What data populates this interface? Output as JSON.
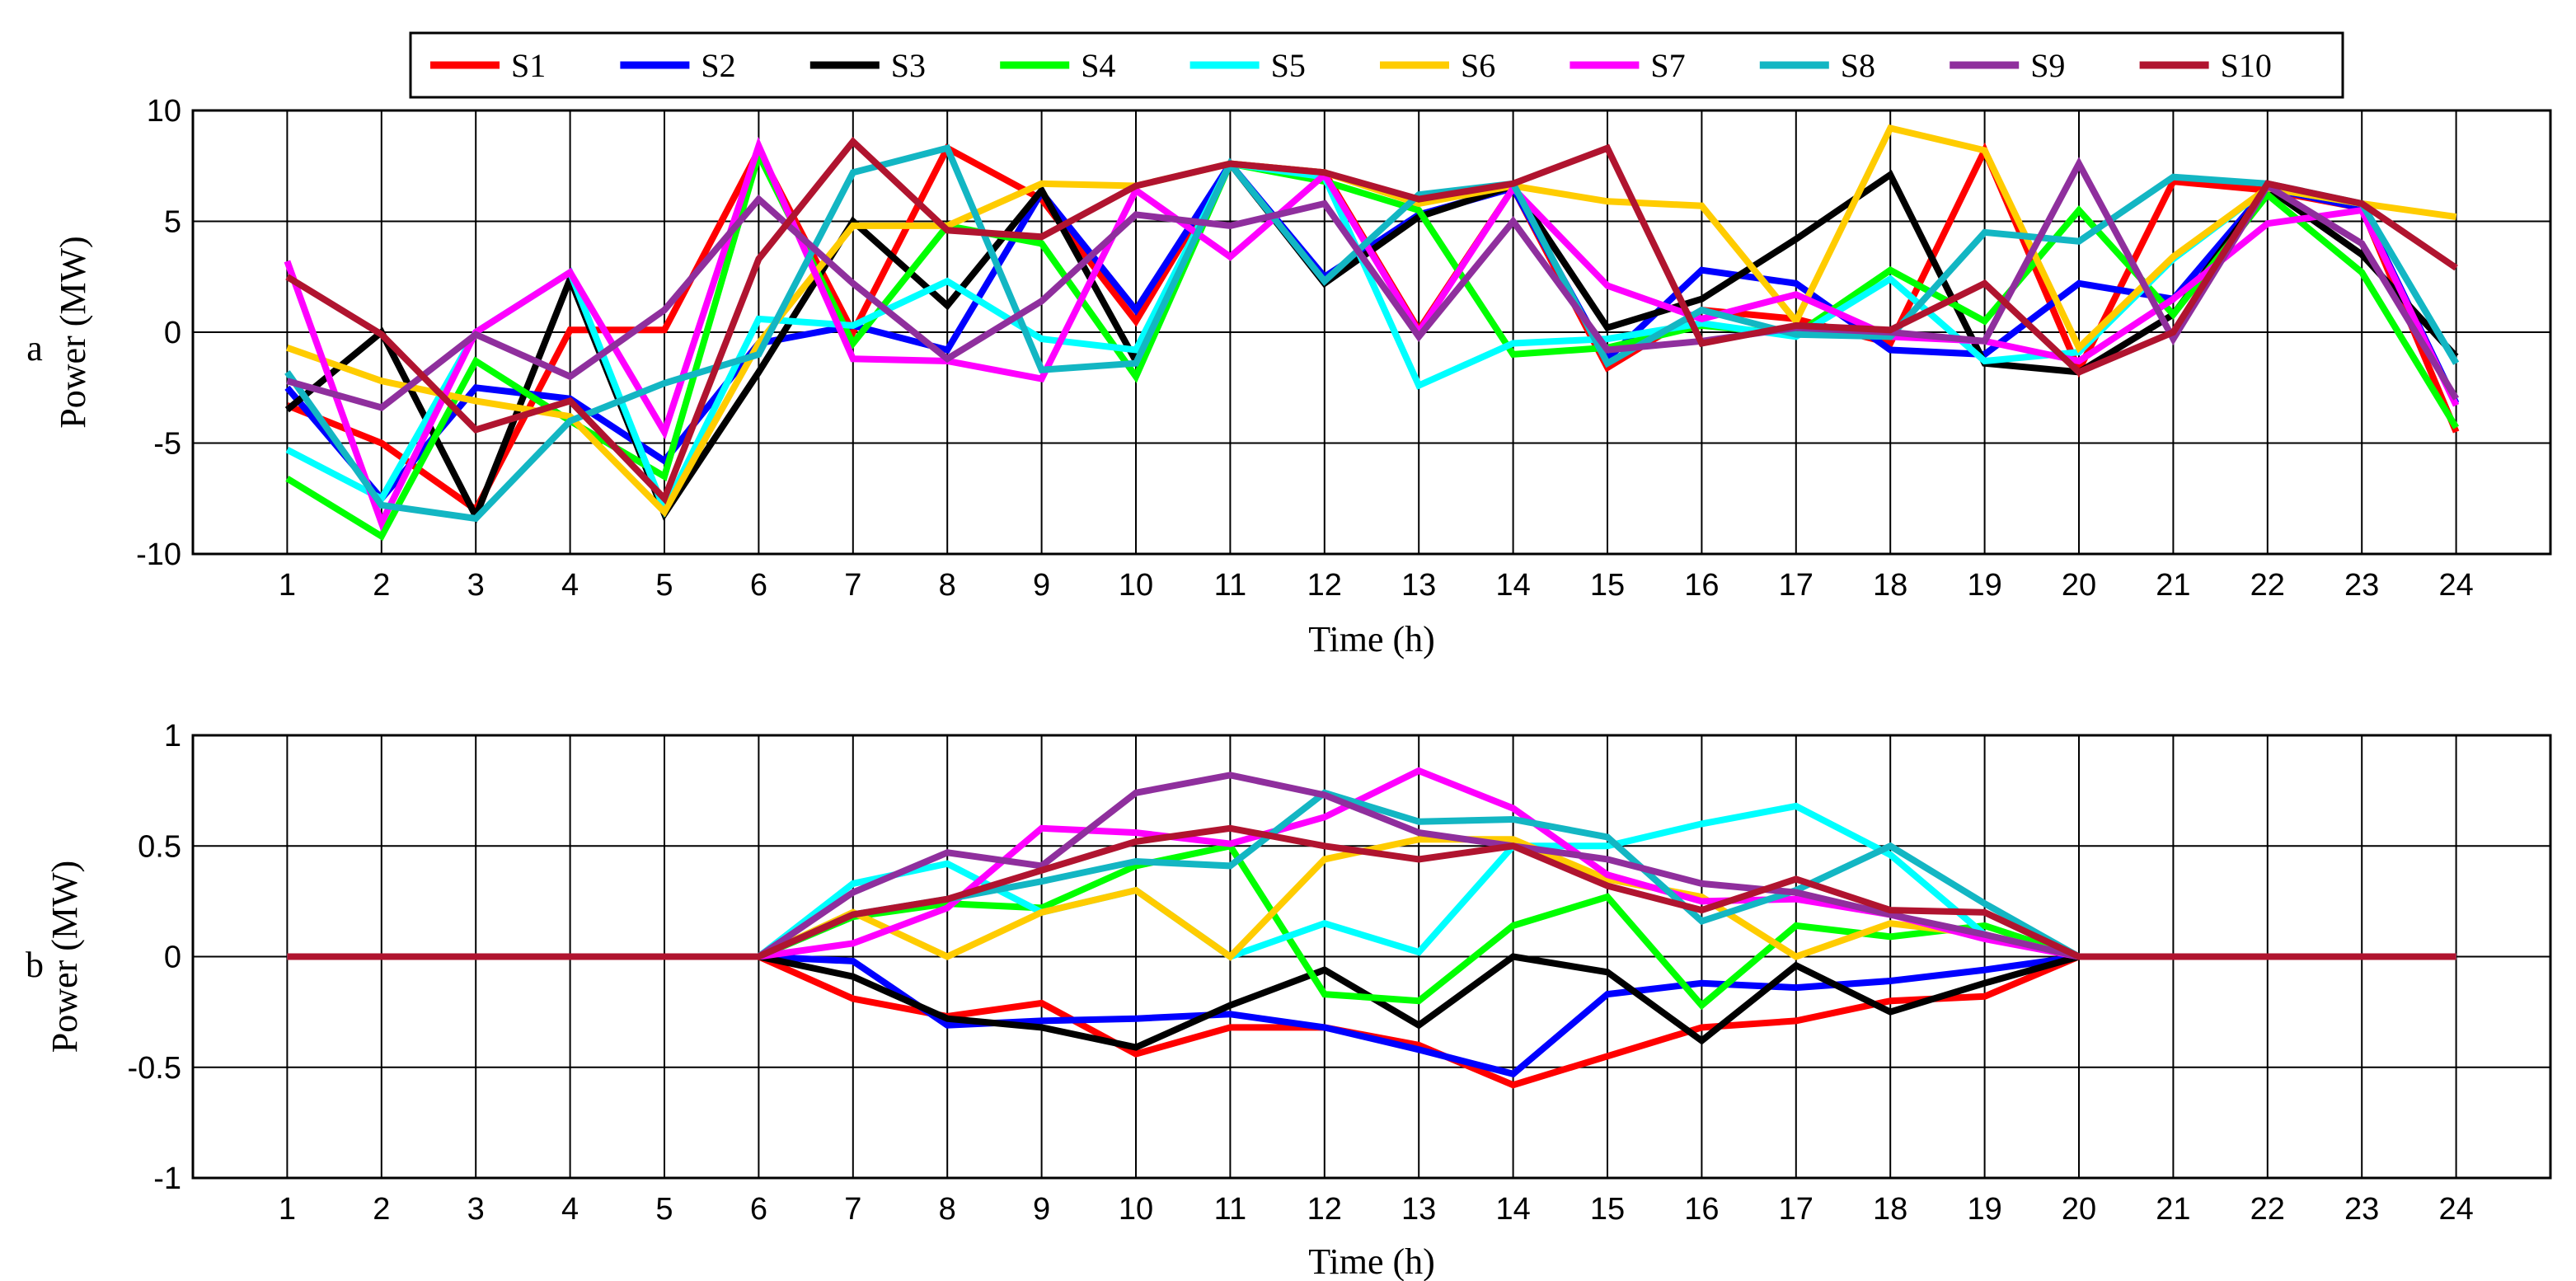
{
  "chart_data": [
    {
      "type": "line",
      "panel_label": "a",
      "xlabel": "Time (h)",
      "ylabel": "Power (MW)",
      "x": [
        1,
        2,
        3,
        4,
        5,
        6,
        7,
        8,
        9,
        10,
        11,
        12,
        13,
        14,
        15,
        16,
        17,
        18,
        19,
        20,
        21,
        22,
        23,
        24
      ],
      "xlim": [
        0,
        25
      ],
      "ylim": [
        -10,
        10
      ],
      "yticks": [
        -10,
        -5,
        0,
        5,
        10
      ],
      "grid": true,
      "legend": "top",
      "series": [
        {
          "name": "S1",
          "color": "#ff0000",
          "values": [
            -3.3,
            -5.0,
            -8.0,
            0.1,
            0.1,
            8.2,
            0.0,
            8.3,
            6.0,
            0.5,
            7.6,
            7.2,
            0.1,
            6.5,
            -1.6,
            1.0,
            0.6,
            -0.5,
            8.2,
            -1.7,
            6.8,
            6.4,
            5.6,
            -4.5
          ]
        },
        {
          "name": "S2",
          "color": "#0000ff",
          "values": [
            -2.5,
            -7.5,
            -2.5,
            -3.0,
            -5.8,
            -0.5,
            0.3,
            -0.8,
            6.3,
            1.0,
            7.6,
            2.5,
            5.3,
            6.5,
            -1.2,
            2.8,
            2.2,
            -0.8,
            -1.0,
            2.2,
            1.5,
            6.5,
            5.6,
            -3.2
          ]
        },
        {
          "name": "S3",
          "color": "#000000",
          "values": [
            -3.5,
            0.0,
            -8.3,
            2.4,
            -8.2,
            -1.8,
            5.0,
            1.2,
            6.4,
            -1.3,
            7.6,
            2.2,
            5.2,
            6.6,
            0.2,
            1.5,
            4.2,
            7.1,
            -1.4,
            -1.8,
            0.8,
            6.5,
            3.5,
            -1.1
          ]
        },
        {
          "name": "S4",
          "color": "#00ff00",
          "values": [
            -6.6,
            -9.2,
            -1.3,
            -4.0,
            -6.5,
            8.0,
            -0.5,
            4.8,
            4.0,
            -2.0,
            7.6,
            6.8,
            5.5,
            -1.0,
            -0.7,
            0.3,
            -0.1,
            2.8,
            0.5,
            5.5,
            0.8,
            6.2,
            2.7,
            -4.3
          ]
        },
        {
          "name": "S5",
          "color": "#00ffff",
          "values": [
            -5.3,
            -7.5,
            0.0,
            2.7,
            -8.0,
            0.6,
            0.3,
            2.3,
            -0.3,
            -0.8,
            7.6,
            7.0,
            -2.4,
            -0.5,
            -0.3,
            0.4,
            -0.2,
            2.4,
            -1.3,
            -0.9,
            3.3,
            6.5,
            5.8,
            -1.4
          ]
        },
        {
          "name": "S6",
          "color": "#ffcc00",
          "values": [
            -0.7,
            -2.2,
            -3.1,
            -3.8,
            -8.1,
            -0.5,
            4.8,
            4.8,
            6.7,
            6.6,
            7.6,
            7.2,
            5.8,
            6.6,
            5.9,
            5.7,
            0.5,
            9.2,
            8.2,
            -0.7,
            3.4,
            6.5,
            5.8,
            5.2
          ]
        },
        {
          "name": "S7",
          "color": "#ff00ff",
          "values": [
            3.2,
            -8.6,
            0.0,
            2.7,
            -4.5,
            8.4,
            -1.2,
            -1.3,
            -2.1,
            6.4,
            3.4,
            7.1,
            0.0,
            6.5,
            2.1,
            0.6,
            1.7,
            -0.2,
            -0.4,
            -1.3,
            1.5,
            4.9,
            5.5,
            -3.3
          ]
        },
        {
          "name": "S8",
          "color": "#13b6c3",
          "values": [
            -1.8,
            -7.8,
            -8.4,
            -4.0,
            -2.3,
            -1.0,
            7.2,
            8.3,
            -1.7,
            -1.4,
            7.6,
            2.3,
            6.2,
            6.7,
            -1.4,
            1.0,
            -0.1,
            -0.2,
            4.5,
            4.1,
            7.0,
            6.7,
            5.8,
            -1.4
          ]
        },
        {
          "name": "S9",
          "color": "#8f2f9d",
          "values": [
            -2.2,
            -3.4,
            -0.1,
            -2.0,
            1.0,
            6.0,
            2.2,
            -1.2,
            1.4,
            5.3,
            4.8,
            5.8,
            -0.2,
            5.0,
            -0.8,
            -0.4,
            0.2,
            0.0,
            -0.4,
            7.6,
            -0.3,
            6.6,
            4.0,
            -3.0
          ]
        },
        {
          "name": "S10",
          "color": "#b0142f",
          "values": [
            2.5,
            -0.1,
            -4.4,
            -3.1,
            -7.5,
            3.3,
            8.6,
            4.6,
            4.3,
            6.6,
            7.6,
            7.2,
            6.0,
            6.7,
            8.3,
            -0.5,
            0.3,
            0.1,
            2.2,
            -1.8,
            0.0,
            6.7,
            5.8,
            2.9
          ]
        }
      ]
    },
    {
      "type": "line",
      "panel_label": "b",
      "xlabel": "Time (h)",
      "ylabel": "Power (MW)",
      "x": [
        1,
        2,
        3,
        4,
        5,
        6,
        7,
        8,
        9,
        10,
        11,
        12,
        13,
        14,
        15,
        16,
        17,
        18,
        19,
        20,
        21,
        22,
        23,
        24
      ],
      "xlim": [
        0,
        25
      ],
      "ylim": [
        -1,
        1
      ],
      "yticks": [
        -1,
        -0.5,
        0,
        0.5,
        1
      ],
      "grid": true,
      "series": [
        {
          "name": "S1",
          "color": "#ff0000",
          "values": [
            0,
            0,
            0,
            0,
            0,
            0,
            -0.19,
            -0.27,
            -0.21,
            -0.44,
            -0.32,
            -0.32,
            -0.4,
            -0.58,
            -0.45,
            -0.32,
            -0.29,
            -0.2,
            -0.18,
            0,
            0,
            0,
            0,
            0
          ]
        },
        {
          "name": "S2",
          "color": "#0000ff",
          "values": [
            0,
            0,
            0,
            0,
            0,
            0,
            -0.02,
            -0.31,
            -0.29,
            -0.28,
            -0.26,
            -0.32,
            -0.42,
            -0.53,
            -0.17,
            -0.12,
            -0.14,
            -0.11,
            -0.06,
            0,
            0,
            0,
            0,
            0
          ]
        },
        {
          "name": "S3",
          "color": "#000000",
          "values": [
            0,
            0,
            0,
            0,
            0,
            0,
            -0.09,
            -0.28,
            -0.32,
            -0.41,
            -0.22,
            -0.06,
            -0.31,
            0.0,
            -0.07,
            -0.38,
            -0.04,
            -0.25,
            -0.12,
            0,
            0,
            0,
            0,
            0
          ]
        },
        {
          "name": "S4",
          "color": "#00ff00",
          "values": [
            0,
            0,
            0,
            0,
            0,
            0,
            0.18,
            0.24,
            0.22,
            0.41,
            0.5,
            -0.17,
            -0.2,
            0.14,
            0.27,
            -0.22,
            0.14,
            0.09,
            0.14,
            0,
            0,
            0,
            0,
            0
          ]
        },
        {
          "name": "S5",
          "color": "#00ffff",
          "values": [
            0,
            0,
            0,
            0,
            0,
            0,
            0.33,
            0.42,
            0.2,
            0.3,
            0.0,
            0.15,
            0.02,
            0.5,
            0.5,
            0.6,
            0.68,
            0.46,
            0.1,
            0,
            0,
            0,
            0,
            0
          ]
        },
        {
          "name": "S6",
          "color": "#ffcc00",
          "values": [
            0,
            0,
            0,
            0,
            0,
            0,
            0.2,
            0.0,
            0.2,
            0.3,
            0.0,
            0.44,
            0.53,
            0.53,
            0.35,
            0.27,
            0.0,
            0.15,
            0.1,
            0,
            0,
            0,
            0,
            0
          ]
        },
        {
          "name": "S7",
          "color": "#ff00ff",
          "values": [
            0,
            0,
            0,
            0,
            0,
            0,
            0.06,
            0.22,
            0.58,
            0.56,
            0.51,
            0.63,
            0.84,
            0.67,
            0.37,
            0.25,
            0.26,
            0.19,
            0.08,
            0,
            0,
            0,
            0,
            0
          ]
        },
        {
          "name": "S8",
          "color": "#13b6c3",
          "values": [
            0,
            0,
            0,
            0,
            0,
            0,
            0.19,
            0.26,
            0.34,
            0.43,
            0.41,
            0.74,
            0.61,
            0.62,
            0.54,
            0.16,
            0.3,
            0.5,
            0.24,
            0,
            0,
            0,
            0,
            0
          ]
        },
        {
          "name": "S9",
          "color": "#8f2f9d",
          "values": [
            0,
            0,
            0,
            0,
            0,
            0,
            0.29,
            0.47,
            0.41,
            0.74,
            0.82,
            0.73,
            0.56,
            0.5,
            0.44,
            0.33,
            0.29,
            0.19,
            0.1,
            0,
            0,
            0,
            0,
            0
          ]
        },
        {
          "name": "S10",
          "color": "#b0142f",
          "values": [
            0,
            0,
            0,
            0,
            0,
            0,
            0.19,
            0.26,
            0.39,
            0.52,
            0.58,
            0.5,
            0.44,
            0.5,
            0.32,
            0.21,
            0.35,
            0.21,
            0.2,
            0,
            0,
            0,
            0,
            0
          ]
        }
      ]
    }
  ]
}
